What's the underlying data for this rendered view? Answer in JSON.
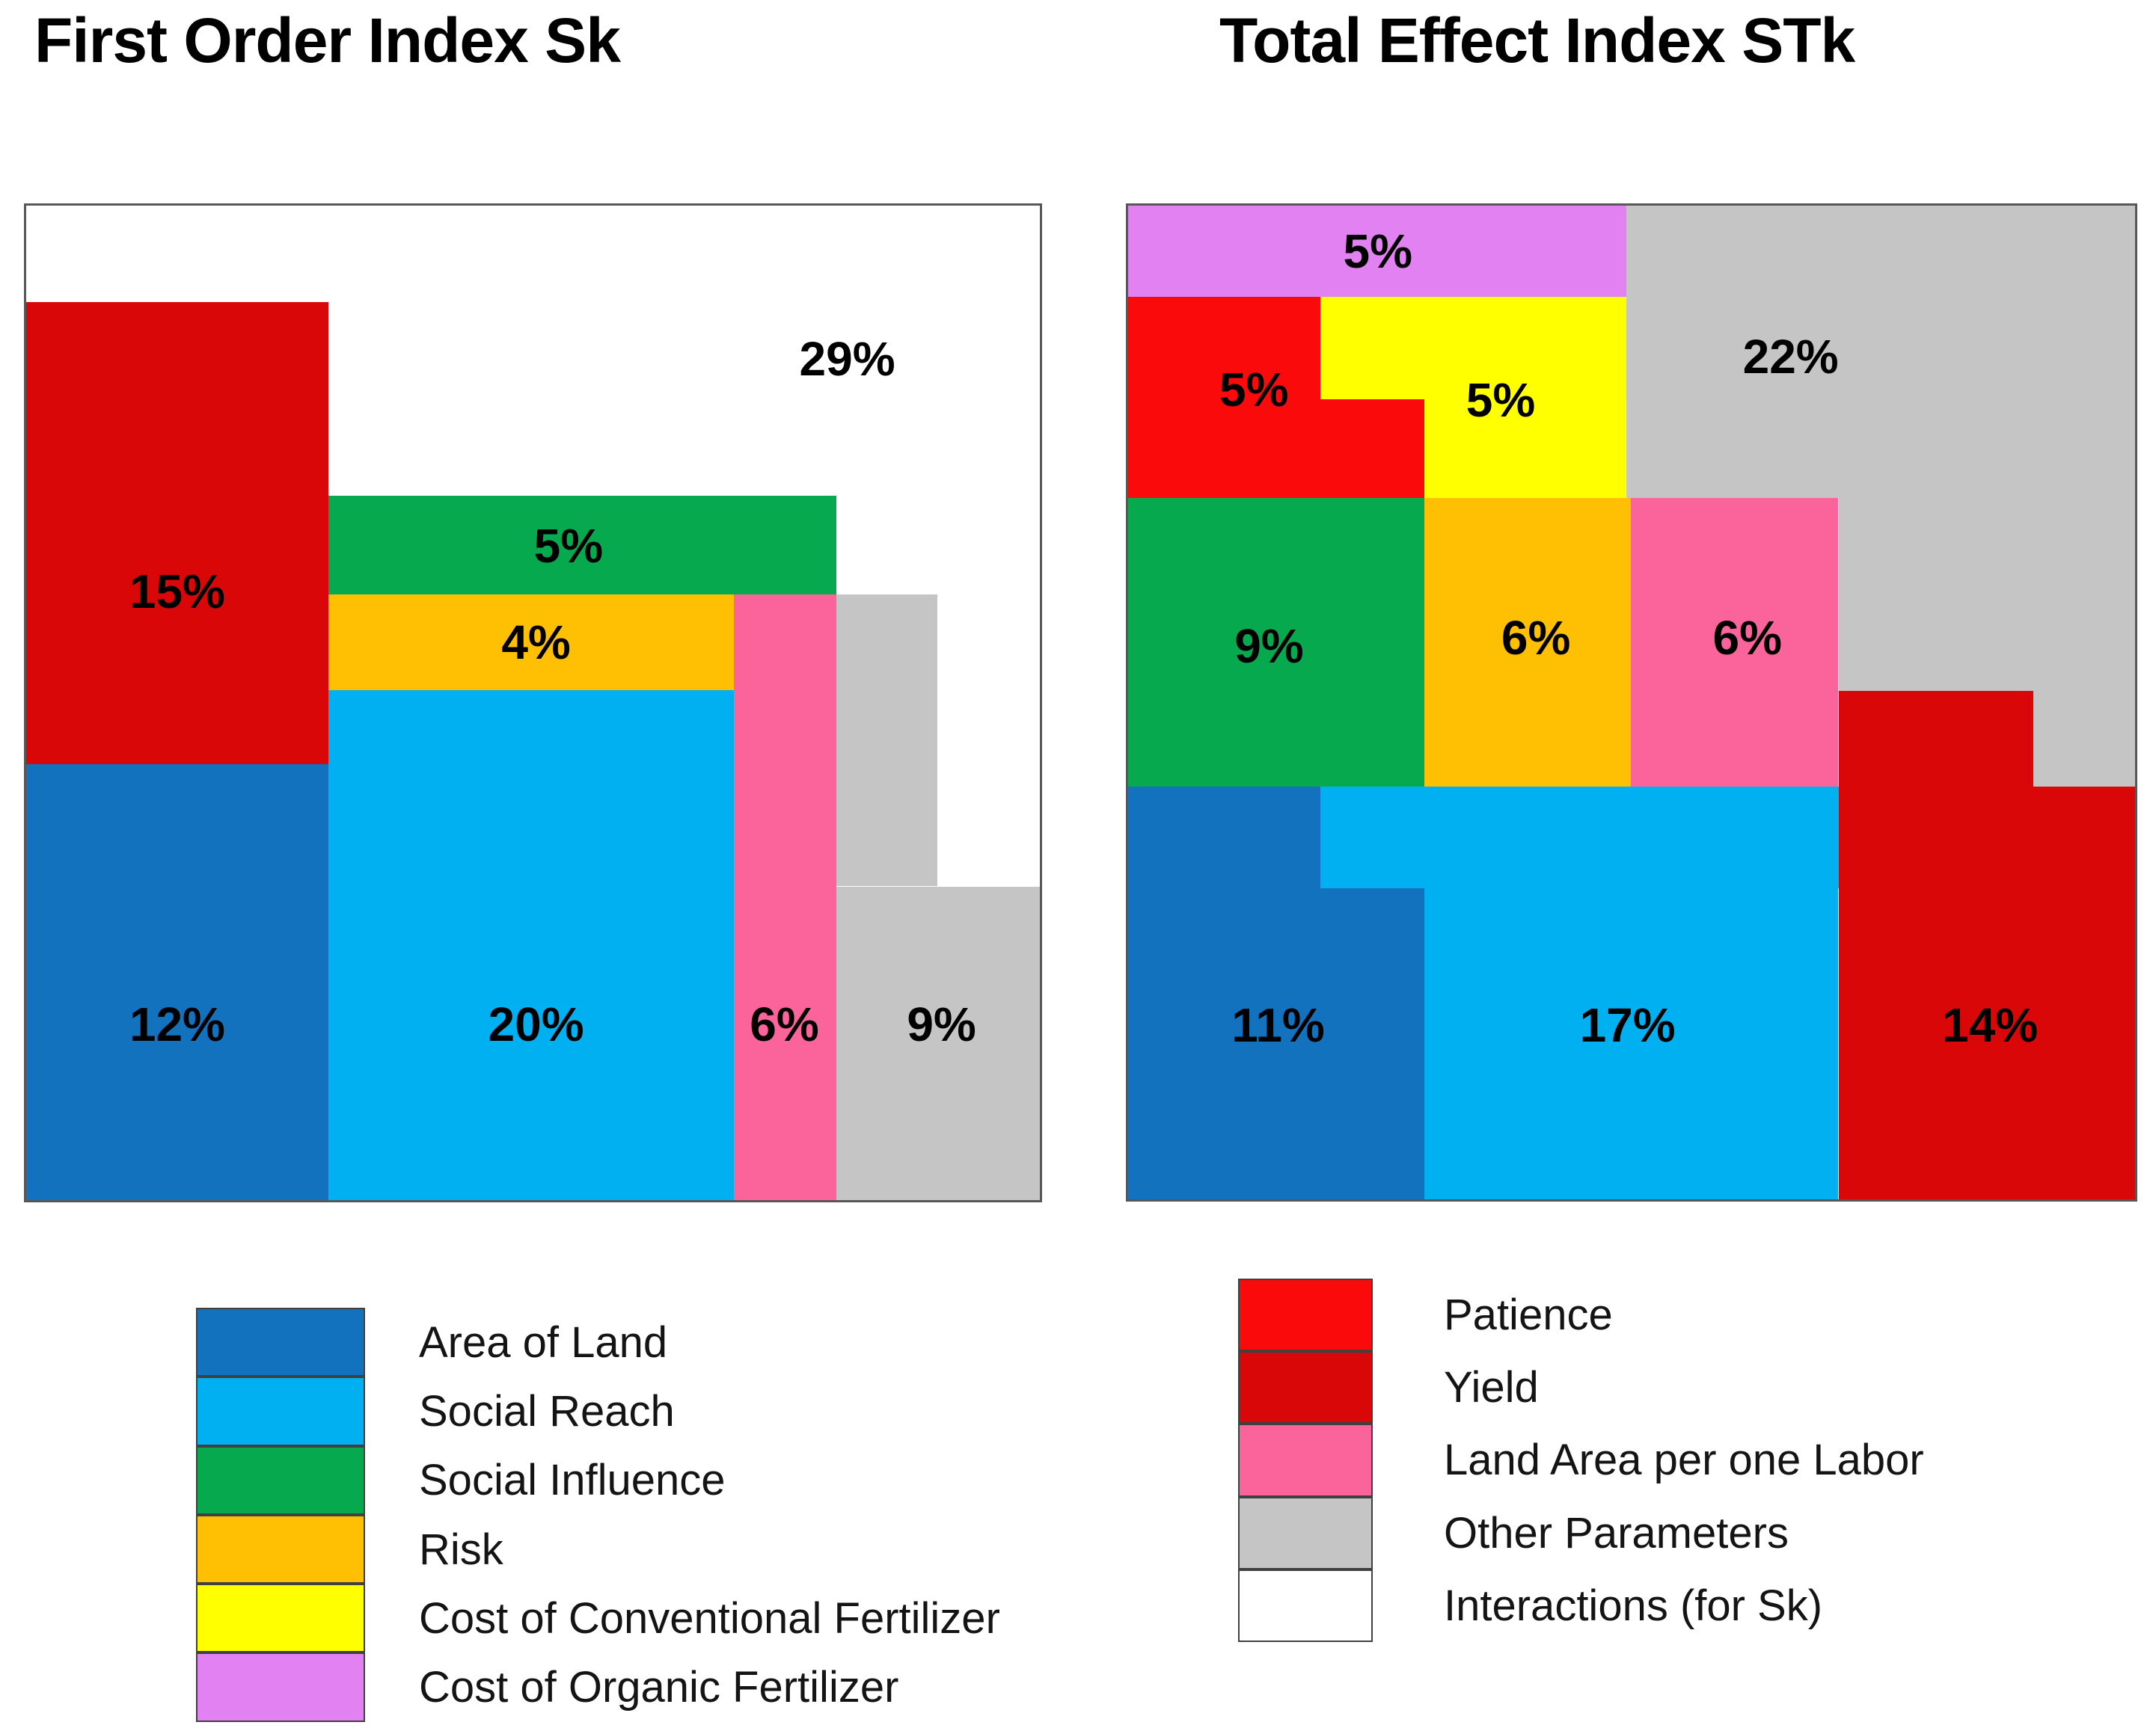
{
  "palette": {
    "blue": "#1272BE",
    "cyan": "#00B0F0",
    "green": "#06A94D",
    "orange": "#FFC003",
    "yellow": "#FFFF00",
    "magenta": "#E282F2",
    "pink": "#FA649B",
    "gray": "#C5C5C5",
    "red_bright": "#FA0A0A",
    "red_dark": "#D90707",
    "white": "#FFFFFF"
  },
  "chart_data": [
    {
      "type": "treemap",
      "title": "First Order Index Sk",
      "units": "percent of variance",
      "grid": false,
      "legend_position": "bottom-left",
      "blocks": [
        {
          "key": "interactions",
          "factor": "Interactions (for Sk)",
          "value_pct": 29,
          "label": "29%",
          "color": "white",
          "rects": [
            [
              0,
              0,
              100,
              100
            ]
          ],
          "label_pos": [
            81,
            15.4
          ]
        },
        {
          "key": "yield",
          "factor": "Yield",
          "value_pct": 15,
          "label": "15%",
          "color": "red_dark",
          "rects": [
            [
              0,
              9.7,
              29.8,
              46.5
            ]
          ],
          "label_pos": [
            14.9,
            38.8
          ]
        },
        {
          "key": "area-of-land",
          "factor": "Area of Land",
          "value_pct": 12,
          "label": "12%",
          "color": "blue",
          "rects": [
            [
              0,
              56.2,
              29.8,
              43.8
            ]
          ],
          "label_pos": [
            14.9,
            82.3
          ]
        },
        {
          "key": "social-influence",
          "factor": "Social Influence",
          "value_pct": 5,
          "label": "5%",
          "color": "green",
          "rects": [
            [
              29.8,
              29.2,
              50.1,
              9.9
            ]
          ],
          "label_pos": [
            53.5,
            34.2
          ]
        },
        {
          "key": "risk",
          "factor": "Risk",
          "value_pct": 4,
          "label": "4%",
          "color": "orange",
          "rects": [
            [
              29.8,
              39.1,
              40.0,
              9.6
            ]
          ],
          "label_pos": [
            50.3,
            43.9
          ]
        },
        {
          "key": "social-reach",
          "factor": "Social Reach",
          "value_pct": 20,
          "label": "20%",
          "color": "cyan",
          "rects": [
            [
              29.8,
              48.7,
              40.0,
              51.3
            ]
          ],
          "label_pos": [
            50.3,
            82.3
          ]
        },
        {
          "key": "land-area-per-one-labor",
          "factor": "Land Area per one Labor",
          "value_pct": 6,
          "label": "6%",
          "color": "pink",
          "rects": [
            [
              69.8,
              39.1,
              10.1,
              60.9
            ]
          ],
          "label_pos": [
            74.8,
            82.3
          ]
        },
        {
          "key": "other-parameters",
          "factor": "Other Parameters",
          "value_pct": 9,
          "label": "9%",
          "color": "gray",
          "rects": [
            [
              79.9,
              39.1,
              10.0,
              29.3
            ],
            [
              79.9,
              68.5,
              20.1,
              31.5
            ]
          ],
          "label_pos": [
            90.3,
            82.3
          ]
        }
      ],
      "legend": [
        {
          "key": "area-of-land",
          "label": "Area of Land",
          "color": "blue"
        },
        {
          "key": "social-reach",
          "label": "Social Reach",
          "color": "cyan"
        },
        {
          "key": "social-influence",
          "label": "Social Influence",
          "color": "green"
        },
        {
          "key": "risk",
          "label": "Risk",
          "color": "orange"
        },
        {
          "key": "cost-of-conventional-fertilizer",
          "label": "Cost of Conventional Fertilizer",
          "color": "yellow"
        },
        {
          "key": "cost-of-organic-fertilizer",
          "label": "Cost of Organic Fertilizer",
          "color": "magenta"
        }
      ]
    },
    {
      "type": "treemap",
      "title": "Total Effect Index STk",
      "units": "percent of variance",
      "grid": false,
      "legend_position": "bottom-right",
      "blocks": [
        {
          "key": "cost-of-organic-fertilizer",
          "factor": "Cost of Organic Fertilizer",
          "value_pct": 5,
          "label": "5%",
          "color": "magenta",
          "rects": [
            [
              0,
              0,
              49.5,
              9.2
            ]
          ],
          "label_pos": [
            24.8,
            4.6
          ]
        },
        {
          "key": "other-parameters",
          "factor": "Other Parameters",
          "value_pct": 22,
          "label": "22%",
          "color": "gray",
          "rects": [
            [
              49.5,
              0,
              50.5,
              29.4
            ],
            [
              70.6,
              29.4,
              29.4,
              19.4
            ],
            [
              89.9,
              48.8,
              10.1,
              9.7
            ]
          ],
          "label_pos": [
            65.8,
            15.2
          ]
        },
        {
          "key": "patience",
          "factor": "Patience",
          "value_pct": 5,
          "label": "5%",
          "color": "red_bright",
          "rects": [
            [
              0,
              9.2,
              19.1,
              10.3
            ],
            [
              0,
              19.5,
              29.4,
              9.9
            ]
          ],
          "label_pos": [
            12.5,
            18.5
          ]
        },
        {
          "key": "cost-of-conventional-fertilizer",
          "factor": "Cost of Conventional Fertilizer",
          "value_pct": 5,
          "label": "5%",
          "color": "yellow",
          "rects": [
            [
              19.1,
              9.2,
              30.4,
              10.3
            ],
            [
              29.4,
              19.5,
              20.0,
              9.9
            ]
          ],
          "label_pos": [
            37,
            19.6
          ]
        },
        {
          "key": "social-influence",
          "factor": "Social Influence",
          "value_pct": 9,
          "label": "9%",
          "color": "green",
          "rects": [
            [
              0,
              29.4,
              29.4,
              29.1
            ]
          ],
          "label_pos": [
            14,
            44.3
          ]
        },
        {
          "key": "risk",
          "factor": "Risk",
          "value_pct": 6,
          "label": "6%",
          "color": "orange",
          "rects": [
            [
              29.4,
              29.4,
              20.5,
              29.1
            ]
          ],
          "label_pos": [
            40.5,
            43.5
          ]
        },
        {
          "key": "land-area-per-one-labor",
          "factor": "Land Area per one Labor",
          "value_pct": 6,
          "label": "6%",
          "color": "pink",
          "rects": [
            [
              49.9,
              29.4,
              20.6,
              29.1
            ]
          ],
          "label_pos": [
            61.5,
            43.5
          ]
        },
        {
          "key": "area-of-land",
          "factor": "Area of Land",
          "value_pct": 11,
          "label": "11%",
          "color": "blue",
          "rects": [
            [
              0,
              58.5,
              19.1,
              10.2
            ],
            [
              0,
              68.7,
              29.4,
              31.3
            ]
          ],
          "label_pos": [
            14.9,
            82.5
          ]
        },
        {
          "key": "social-reach",
          "factor": "Social Reach",
          "value_pct": 17,
          "label": "17%",
          "color": "cyan",
          "rects": [
            [
              19.1,
              58.5,
              51.5,
              10.2
            ],
            [
              29.4,
              68.7,
              41.1,
              31.3
            ]
          ],
          "label_pos": [
            49.6,
            82.5
          ]
        },
        {
          "key": "yield",
          "factor": "Yield",
          "value_pct": 14,
          "label": "14%",
          "color": "red_dark",
          "rects": [
            [
              70.6,
              48.8,
              19.3,
              9.7
            ],
            [
              70.6,
              58.5,
              29.4,
              41.5
            ]
          ],
          "label_pos": [
            85.6,
            82.5
          ]
        }
      ],
      "legend": [
        {
          "key": "patience",
          "label": "Patience",
          "color": "red_bright"
        },
        {
          "key": "yield",
          "label": "Yield",
          "color": "red_dark"
        },
        {
          "key": "land-area-per-one-labor",
          "label": "Land Area per one Labor",
          "color": "pink"
        },
        {
          "key": "other-parameters",
          "label": "Other Parameters",
          "color": "gray"
        },
        {
          "key": "interactions-for-sk",
          "label": "Interactions (for Sk)",
          "color": "white"
        }
      ]
    }
  ]
}
